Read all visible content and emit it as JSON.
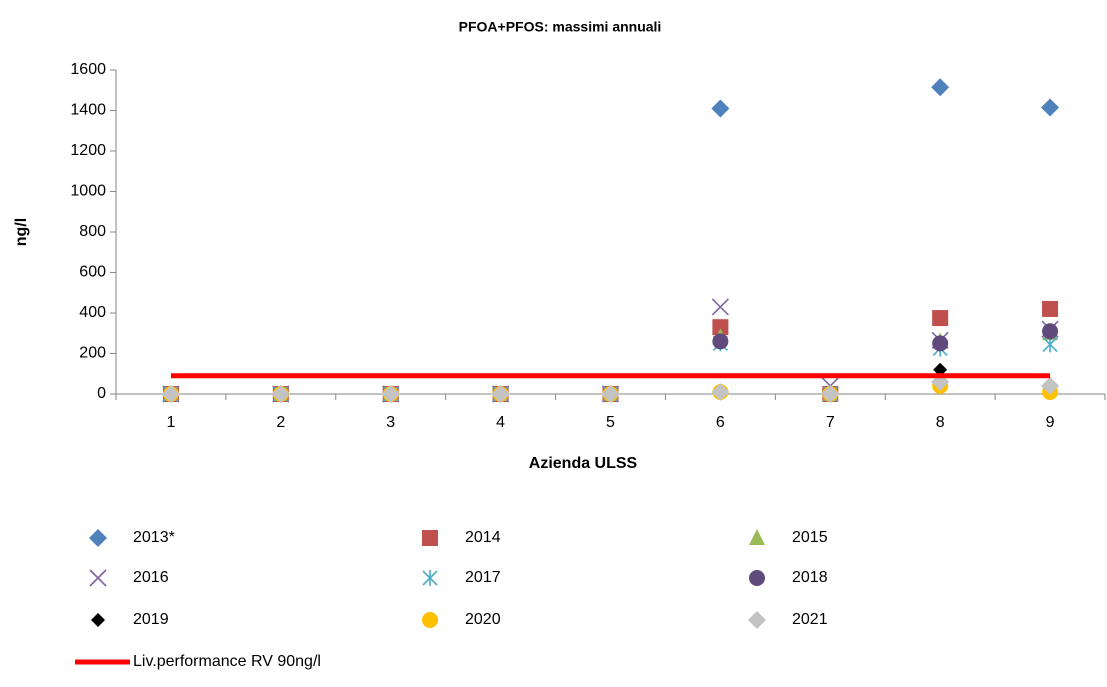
{
  "chart_data": {
    "type": "scatter",
    "title": "PFOA+PFOS: massimi annuali",
    "x_label": "Azienda ULSS",
    "y_label": "ng/l",
    "categories": [
      "1",
      "2",
      "3",
      "4",
      "5",
      "6",
      "7",
      "8",
      "9"
    ],
    "ylim": [
      0,
      1600
    ],
    "yticks": [
      0,
      200,
      400,
      600,
      800,
      1000,
      1200,
      1400,
      1600
    ],
    "series": [
      {
        "name": "2013*",
        "color": "#4f81bd",
        "marker": "diamond",
        "values": [
          0,
          0,
          0,
          0,
          0,
          1410,
          0,
          1515,
          1415
        ]
      },
      {
        "name": "2014",
        "color": "#c0504d",
        "marker": "square",
        "values": [
          0,
          0,
          0,
          0,
          0,
          330,
          0,
          375,
          420
        ]
      },
      {
        "name": "2015",
        "color": "#9bbb59",
        "marker": "triangle",
        "values": [
          0,
          0,
          0,
          0,
          0,
          280,
          0,
          260,
          300
        ]
      },
      {
        "name": "2016",
        "color": "#8064a2",
        "marker": "x",
        "values": [
          0,
          0,
          0,
          0,
          0,
          430,
          40,
          265,
          320
        ]
      },
      {
        "name": "2017",
        "color": "#4bacc6",
        "marker": "asterisk",
        "values": [
          0,
          0,
          0,
          0,
          0,
          250,
          0,
          225,
          245
        ]
      },
      {
        "name": "2018",
        "color": "#604a7b",
        "marker": "circle",
        "values": [
          0,
          0,
          0,
          0,
          0,
          260,
          0,
          250,
          310
        ]
      },
      {
        "name": "2019",
        "color": "#000000",
        "marker": "smalldiamond",
        "values": [
          0,
          0,
          0,
          0,
          0,
          10,
          0,
          120,
          40
        ]
      },
      {
        "name": "2020",
        "color": "#ffc000",
        "marker": "circle",
        "values": [
          0,
          0,
          0,
          0,
          0,
          10,
          0,
          40,
          10
        ]
      },
      {
        "name": "2021",
        "color": "#c3c3c3",
        "marker": "diamond",
        "values": [
          0,
          0,
          0,
          0,
          0,
          10,
          0,
          60,
          40
        ]
      }
    ],
    "reference_line": {
      "name": "Liv.performance RV 90ng/l",
      "value": 90,
      "color": "#ff0000"
    }
  }
}
